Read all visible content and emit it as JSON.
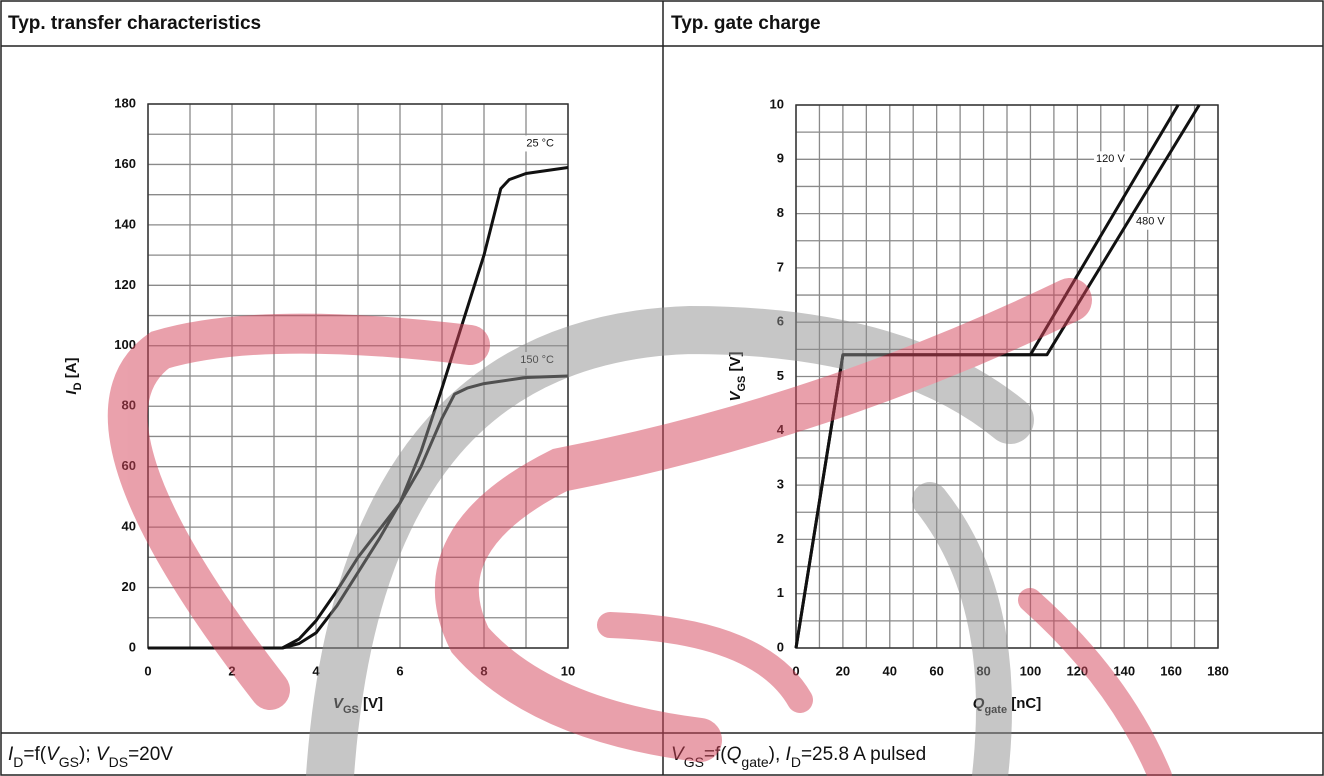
{
  "chart_data": [
    {
      "type": "line",
      "title": "Typ. transfer characteristics",
      "x_label": [
        {
          "text": "V",
          "style": "italic"
        },
        {
          "text": "GS",
          "style": "sub"
        },
        {
          "text": " [V]",
          "style": "normal"
        }
      ],
      "y_label": [
        {
          "text": "I",
          "style": "italic"
        },
        {
          "text": "D",
          "style": "sub"
        },
        {
          "text": " [A]",
          "style": "normal"
        }
      ],
      "caption": [
        {
          "text": "I",
          "style": "italic"
        },
        {
          "text": "D",
          "style": "sub"
        },
        {
          "text": "=f(",
          "style": "normal"
        },
        {
          "text": "V",
          "style": "italic"
        },
        {
          "text": "GS",
          "style": "sub"
        },
        {
          "text": "); ",
          "style": "normal"
        },
        {
          "text": "V",
          "style": "italic"
        },
        {
          "text": "DS",
          "style": "sub"
        },
        {
          "text": "=20V",
          "style": "normal"
        }
      ],
      "xlim": [
        0,
        10
      ],
      "xticks": [
        0,
        2,
        4,
        6,
        8,
        10
      ],
      "x_minor_ticks": [
        1,
        3,
        5,
        7,
        9
      ],
      "ylim": [
        0,
        180
      ],
      "yticks": [
        0,
        20,
        40,
        60,
        80,
        100,
        120,
        140,
        160,
        180
      ],
      "y_minor_ticks": [
        10,
        30,
        50,
        70,
        90,
        110,
        130,
        150,
        170
      ],
      "grid": true,
      "series": [
        {
          "name": "25 °C",
          "color": "#111111",
          "x": [
            0,
            3.2,
            3.6,
            4,
            4.5,
            5,
            5.5,
            6,
            6.5,
            7,
            7.5,
            8,
            8.4,
            8.6,
            9,
            10
          ],
          "values": [
            0,
            0,
            1.5,
            5,
            14,
            25,
            36,
            48,
            65,
            86,
            108,
            130,
            152,
            155,
            157,
            159
          ]
        },
        {
          "name": "150 °C",
          "color": "#111111",
          "x": [
            0,
            3.2,
            3.6,
            4,
            4.5,
            5,
            5.5,
            6,
            6.5,
            7,
            7.3,
            7.6,
            8,
            9,
            10
          ],
          "values": [
            0,
            0,
            3,
            9,
            19,
            30,
            39,
            48,
            60,
            76,
            84,
            86,
            87.5,
            89.5,
            90
          ]
        }
      ]
    },
    {
      "type": "line",
      "title": "Typ. gate charge",
      "x_label": [
        {
          "text": "Q",
          "style": "italic"
        },
        {
          "text": "gate",
          "style": "sub"
        },
        {
          "text": " [nC]",
          "style": "normal"
        }
      ],
      "y_label": [
        {
          "text": "V",
          "style": "italic"
        },
        {
          "text": "GS",
          "style": "sub"
        },
        {
          "text": " [V]",
          "style": "normal"
        }
      ],
      "caption": [
        {
          "text": "V",
          "style": "italic"
        },
        {
          "text": "GS",
          "style": "sub"
        },
        {
          "text": "=f(",
          "style": "normal"
        },
        {
          "text": "Q",
          "style": "italic"
        },
        {
          "text": "gate",
          "style": "sub"
        },
        {
          "text": "), ",
          "style": "normal"
        },
        {
          "text": "I",
          "style": "italic"
        },
        {
          "text": "D",
          "style": "sub"
        },
        {
          "text": "=25.8 A pulsed",
          "style": "normal"
        }
      ],
      "xlim": [
        0,
        180
      ],
      "xticks": [
        0,
        20,
        40,
        60,
        80,
        100,
        120,
        140,
        160,
        180
      ],
      "x_minor_ticks": [
        10,
        30,
        50,
        70,
        90,
        110,
        130,
        150,
        170
      ],
      "ylim": [
        0,
        10
      ],
      "yticks": [
        0,
        1,
        2,
        3,
        4,
        5,
        6,
        7,
        8,
        9,
        10
      ],
      "y_minor_ticks": [
        0.5,
        1.5,
        2.5,
        3.5,
        4.5,
        5.5,
        6.5,
        7.5,
        8.5,
        9.5
      ],
      "grid": true,
      "series": [
        {
          "name": "120 V",
          "color": "#111111",
          "x": [
            0,
            20,
            100,
            163
          ],
          "values": [
            0,
            5.4,
            5.4,
            10
          ]
        },
        {
          "name": "480 V",
          "color": "#111111",
          "x": [
            0,
            20,
            107,
            172
          ],
          "values": [
            0,
            5.4,
            5.4,
            10
          ]
        }
      ]
    }
  ]
}
